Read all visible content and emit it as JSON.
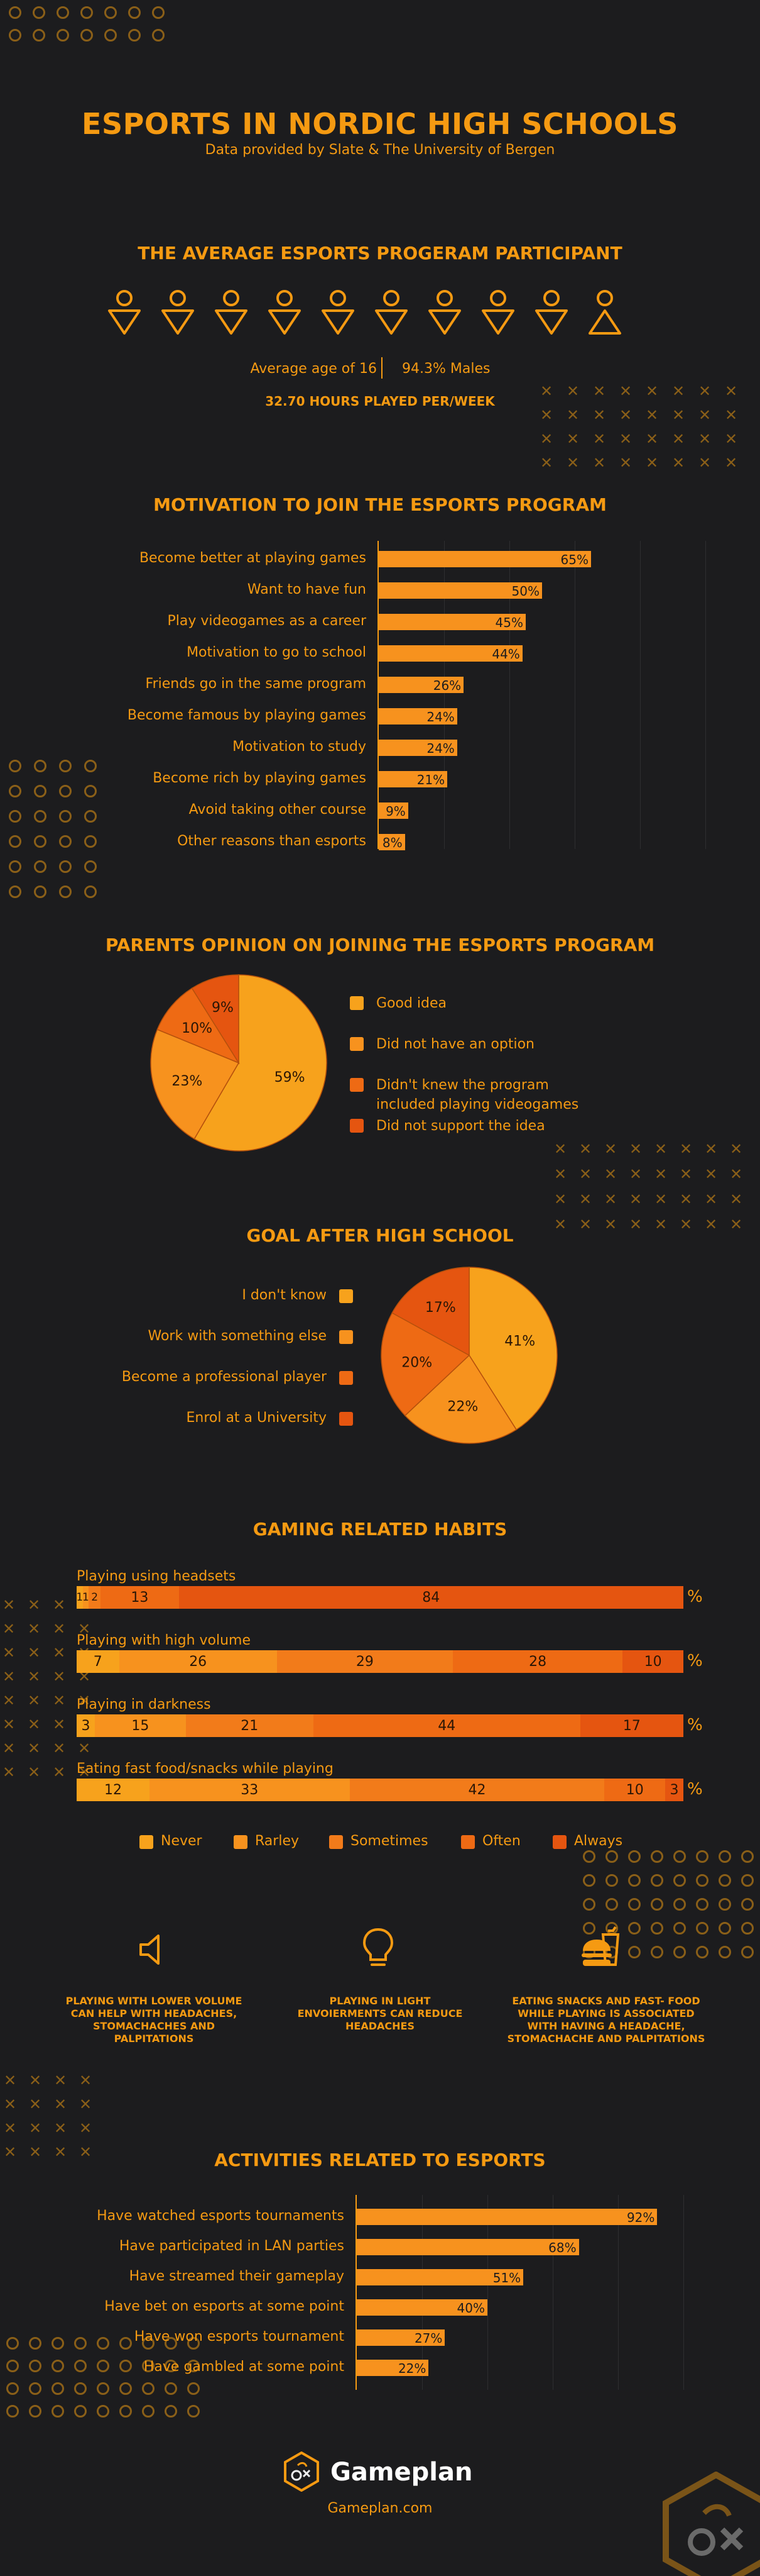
{
  "header": {
    "title": "ESPORTS IN NORDIC HIGH SCHOOLS",
    "subtitle": "Data provided by Slate & The University of Bergen"
  },
  "participant": {
    "title": "THE AVERAGE ESPORTS PROGERAM PARTICIPANT",
    "male_icons": 9,
    "female_icons": 1,
    "avg_age": "Average age of 16",
    "males": "94.3% Males",
    "hours": "32.70 HOURS PLAYED PER/WEEK"
  },
  "colors": {
    "c1": "#f7a21c",
    "c2": "#f7921e",
    "c3": "#f27b1a",
    "c4": "#ee6a14",
    "c5": "#e55510"
  },
  "chart_data": [
    {
      "type": "bar",
      "title": "MOTIVATION TO JOIN THE ESPORTS PROGRAM",
      "categories": [
        "Become better at playing games",
        "Want to have fun",
        "Play videogames as a career",
        "Motivation to go to school",
        "Friends go in the same program",
        "Become famous by playing games",
        "Motivation to study",
        "Become rich by playing games",
        "Avoid taking other course",
        "Other reasons than esports"
      ],
      "values": [
        65,
        50,
        45,
        44,
        26,
        24,
        24,
        21,
        9,
        8
      ],
      "value_labels": [
        "65%",
        "50%",
        "45%",
        "44%",
        "26%",
        "24%",
        "24%",
        "21%",
        "9%",
        "8%"
      ]
    },
    {
      "type": "pie",
      "title": "PARENTS OPINION ON JOINING THE ESPORTS PROGRAM",
      "categories": [
        "Good idea",
        "Did not have an option",
        "Didn't knew the program included playing videogames",
        "Did not support the idea"
      ],
      "values": [
        59,
        23,
        10,
        9
      ],
      "value_labels": [
        "59%",
        "23%",
        "10%",
        "9%"
      ]
    },
    {
      "type": "pie",
      "title": "GOAL AFTER HIGH SCHOOL",
      "categories": [
        "I don't know",
        "Work with something else",
        "Become a professional player",
        "Enrol at a University"
      ],
      "values": [
        41,
        22,
        20,
        17
      ],
      "value_labels": [
        "41%",
        "22%",
        "20%",
        "17%"
      ]
    },
    {
      "type": "bar",
      "title": "GAMING RELATED HABITS",
      "legend": [
        "Never",
        "Rarley",
        "Sometimes",
        "Often",
        "Always"
      ],
      "unit": "%",
      "rows": [
        {
          "name": "Playing using headsets",
          "values": [
            1,
            1,
            2,
            13,
            84
          ],
          "labels": [
            "1",
            "1",
            "2",
            "13",
            "84"
          ]
        },
        {
          "name": "Playing with high volume",
          "values": [
            7,
            26,
            29,
            28,
            10
          ],
          "labels": [
            "7",
            "26",
            "29",
            "28",
            "10"
          ]
        },
        {
          "name": "Playing in darkness",
          "values": [
            3,
            15,
            21,
            44,
            17
          ],
          "labels": [
            "3",
            "15",
            "21",
            "44",
            "17"
          ]
        },
        {
          "name": "Eating fast food/snacks while playing",
          "values": [
            12,
            33,
            42,
            10,
            3
          ],
          "labels": [
            "12",
            "33",
            "42",
            "10",
            "3"
          ]
        }
      ]
    },
    {
      "type": "bar",
      "title": "ACTIVITIES RELATED TO ESPORTS",
      "categories": [
        "Have watched esports tournaments",
        "Have participated in LAN parties",
        "Have streamed their gameplay",
        "Have bet on esports at some point",
        "Have won esports tournament",
        "Have gambled at some point"
      ],
      "values": [
        92,
        68,
        51,
        40,
        27,
        22
      ],
      "value_labels": [
        "92%",
        "68%",
        "51%",
        "40%",
        "27%",
        "22%"
      ]
    }
  ],
  "tips": [
    {
      "icon": "speaker-icon",
      "text": "PLAYING WITH LOWER VOLUME CAN HELP WITH  HEADACHES, STOMACHACHES AND PALPITATIONS"
    },
    {
      "icon": "lightbulb-icon",
      "text": "PLAYING IN LIGHT ENVOIERMENTS CAN REDUCE HEADACHES"
    },
    {
      "icon": "burger-drink-icon",
      "text": "EATING SNACKS AND FAST- FOOD WHILE PLAYING IS ASSOCIATED WITH HAVING A HEADACHE, STOMACHACHE AND PALPITATIONS"
    }
  ],
  "footer": {
    "brand": "Gameplan",
    "url": "Gameplan.com"
  }
}
